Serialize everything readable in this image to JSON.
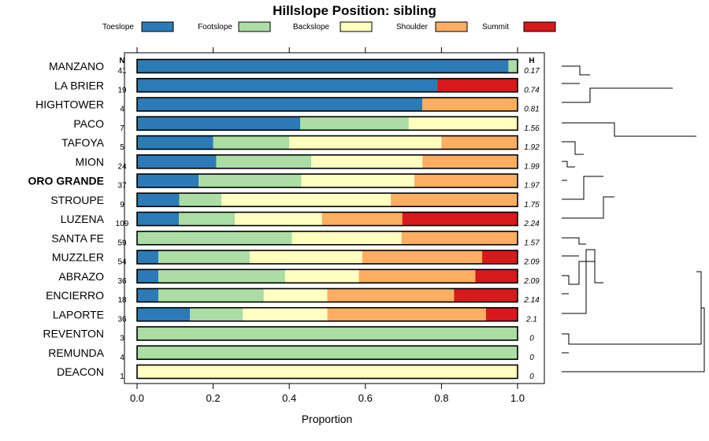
{
  "chart_data": {
    "type": "bar",
    "stacked": true,
    "orientation": "horizontal",
    "title": "Hillslope Position: sibling",
    "xlabel": "Proportion",
    "ylabel": "",
    "xlim": [
      0,
      1
    ],
    "x_ticks": [
      "0.0",
      "0.2",
      "0.4",
      "0.6",
      "0.8",
      "1.0"
    ],
    "n_header": "N",
    "h_header": "H",
    "highlight_category": "ORO GRANDE",
    "legend": [
      {
        "name": "Toeslope",
        "color": "#2c7bb6"
      },
      {
        "name": "Footslope",
        "color": "#abdda4"
      },
      {
        "name": "Backslope",
        "color": "#ffffbf"
      },
      {
        "name": "Shoulder",
        "color": "#fdae61"
      },
      {
        "name": "Summit",
        "color": "#d7191c"
      }
    ],
    "categories": [
      "MANZANO",
      "LA BRIER",
      "HIGHTOWER",
      "PACO",
      "TAFOYA",
      "MION",
      "ORO GRANDE",
      "STROUPE",
      "LUZENA",
      "SANTA FE",
      "MUZZLER",
      "ABRAZO",
      "ENCIERRO",
      "LAPORTE",
      "REVENTON",
      "REMUNDA",
      "DEACON"
    ],
    "n": [
      "41",
      "19",
      "4",
      "7",
      "5",
      "24",
      "37",
      "9",
      "109",
      "59",
      "54",
      "36",
      "18",
      "36",
      "3",
      "4",
      "1"
    ],
    "h": [
      "0.17",
      "0.74",
      "0.81",
      "1.56",
      "1.92",
      "1.99",
      "1.97",
      "1.75",
      "2.24",
      "1.57",
      "2.09",
      "2.09",
      "2.14",
      "2.1",
      "0",
      "0",
      "0"
    ],
    "series": [
      {
        "name": "Toeslope",
        "values": [
          0.976,
          0.789,
          0.75,
          0.429,
          0.2,
          0.208,
          0.162,
          0.111,
          0.11,
          0,
          0.056,
          0.056,
          0.056,
          0.139,
          0,
          0,
          0
        ]
      },
      {
        "name": "Footslope",
        "values": [
          0.024,
          0,
          0,
          0.285,
          0.2,
          0.25,
          0.27,
          0.111,
          0.147,
          0.407,
          0.24,
          0.333,
          0.277,
          0.139,
          1,
          1,
          0
        ]
      },
      {
        "name": "Backslope",
        "values": [
          0,
          0,
          0,
          0.286,
          0.4,
          0.292,
          0.297,
          0.445,
          0.229,
          0.288,
          0.296,
          0.194,
          0.167,
          0.222,
          0,
          0,
          1
        ]
      },
      {
        "name": "Shoulder",
        "values": [
          0,
          0,
          0.25,
          0,
          0.2,
          0.25,
          0.271,
          0.333,
          0.211,
          0.305,
          0.315,
          0.306,
          0.333,
          0.417,
          0,
          0,
          0
        ]
      },
      {
        "name": "Summit",
        "values": [
          0,
          0.211,
          0,
          0,
          0,
          0,
          0,
          0,
          0.303,
          0,
          0.093,
          0.111,
          0.167,
          0.083,
          0,
          0,
          0
        ]
      }
    ]
  }
}
